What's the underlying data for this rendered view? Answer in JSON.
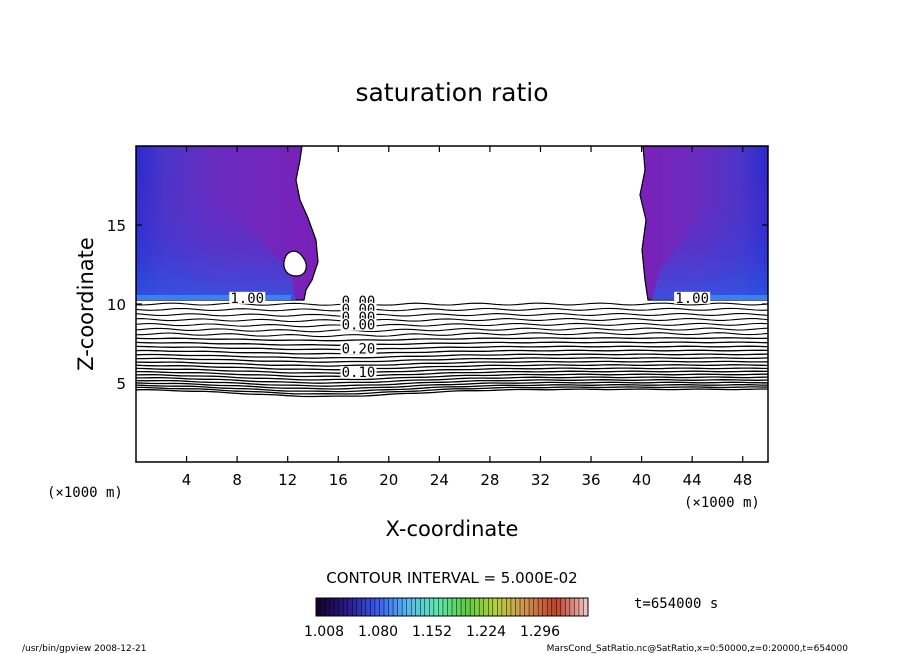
{
  "chart_data": {
    "type": "heatmap",
    "title": "saturation ratio",
    "xlabel": "X-coordinate",
    "ylabel": "Z-coordinate",
    "x_unit_left": "(×1000 m)",
    "x_unit_right": "(×1000 m)",
    "xlim": [
      0,
      50
    ],
    "ylim": [
      0,
      20
    ],
    "x_ticks": [
      4,
      8,
      12,
      16,
      20,
      24,
      28,
      32,
      36,
      40,
      44,
      48
    ],
    "y_ticks": [
      5,
      10,
      15
    ],
    "contour_interval_label": "CONTOUR INTERVAL = 5.000E-02",
    "contour_labels": [
      {
        "text": "0.10",
        "x": 17.6,
        "z": 5.5
      },
      {
        "text": "0.20",
        "x": 17.6,
        "z": 7.0
      },
      {
        "text": "1.00",
        "x": 8.8,
        "z": 10.2
      },
      {
        "text": "1.00",
        "x": 44.0,
        "z": 10.2
      },
      {
        "text": "0.00",
        "x": 17.6,
        "z": 10.0
      },
      {
        "text": "0.00",
        "x": 17.6,
        "z": 9.5
      },
      {
        "text": "0.00",
        "x": 17.6,
        "z": 9.0
      },
      {
        "text": "0.00",
        "x": 17.6,
        "z": 8.5
      }
    ],
    "colorbar": {
      "tick_labels": [
        "1.008",
        "1.080",
        "1.152",
        "1.224",
        "1.296"
      ],
      "min": 1.008,
      "max": 1.296,
      "colors": [
        "#1a0030",
        "#2a1b8c",
        "#3a5cf0",
        "#58b8f0",
        "#5ce8b0",
        "#5ecc40",
        "#b8d040",
        "#d09050",
        "#c04028",
        "#f0c0c0"
      ]
    },
    "time_label": "t=654000 s",
    "saturated_regions": [
      {
        "name": "left",
        "x_range": [
          0,
          13.5
        ],
        "z_range": [
          10,
          20
        ]
      },
      {
        "name": "right",
        "x_range": [
          40.2,
          50
        ],
        "z_range": [
          10,
          20
        ]
      }
    ]
  },
  "footer": {
    "left": "/usr/bin/gpview   2008-12-21",
    "right": "MarsCond_SatRatio.nc@SatRatio,x=0:50000,z=0:20000,t=654000"
  }
}
